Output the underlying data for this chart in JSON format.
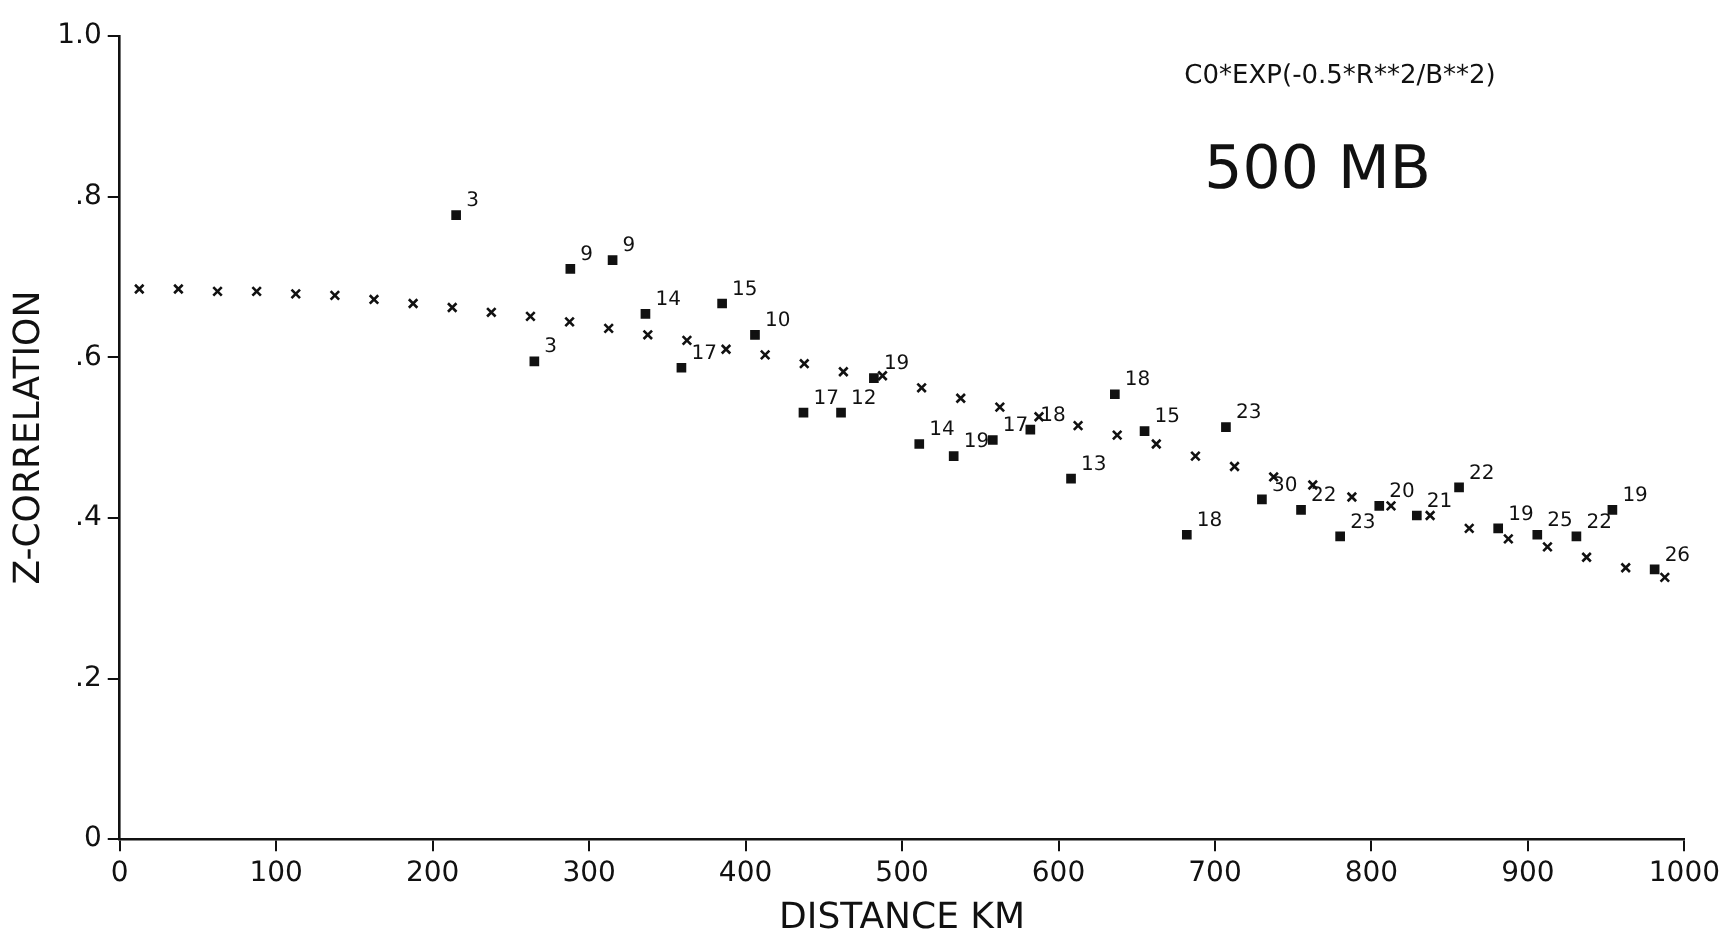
{
  "chart_data": {
    "type": "scatter",
    "xlabel": "DISTANCE KM",
    "ylabel": "Z-CORRELATION",
    "annotations": [
      "C0*EXP(-0.5*R**2/B**2)",
      "500 MB",
      {
        "text": "3",
        "x": 215,
        "y": 0.777
      },
      {
        "text": "3",
        "x": 265,
        "y": 0.595
      },
      {
        "text": "9",
        "x": 288,
        "y": 0.71
      },
      {
        "text": "9",
        "x": 315,
        "y": 0.721
      },
      {
        "text": "14",
        "x": 336,
        "y": 0.654
      },
      {
        "text": "17",
        "x": 359,
        "y": 0.587
      },
      {
        "text": "15",
        "x": 385,
        "y": 0.667
      },
      {
        "text": "10",
        "x": 406,
        "y": 0.628
      },
      {
        "text": "17",
        "x": 437,
        "y": 0.531
      },
      {
        "text": "12",
        "x": 461,
        "y": 0.531
      },
      {
        "text": "19",
        "x": 482,
        "y": 0.574
      },
      {
        "text": "14",
        "x": 511,
        "y": 0.492
      },
      {
        "text": "19",
        "x": 533,
        "y": 0.477
      },
      {
        "text": "17",
        "x": 558,
        "y": 0.497
      },
      {
        "text": "18",
        "x": 582,
        "y": 0.51
      },
      {
        "text": "13",
        "x": 608,
        "y": 0.449
      },
      {
        "text": "18",
        "x": 636,
        "y": 0.554
      },
      {
        "text": "15",
        "x": 655,
        "y": 0.508
      },
      {
        "text": "18",
        "x": 682,
        "y": 0.379
      },
      {
        "text": "23",
        "x": 707,
        "y": 0.513
      },
      {
        "text": "30",
        "x": 730,
        "y": 0.423
      },
      {
        "text": "22",
        "x": 755,
        "y": 0.41
      },
      {
        "text": "23",
        "x": 780,
        "y": 0.377
      },
      {
        "text": "20",
        "x": 805,
        "y": 0.415
      },
      {
        "text": "21",
        "x": 829,
        "y": 0.403
      },
      {
        "text": "22",
        "x": 856,
        "y": 0.438
      },
      {
        "text": "19",
        "x": 881,
        "y": 0.387
      },
      {
        "text": "25",
        "x": 906,
        "y": 0.379
      },
      {
        "text": "22",
        "x": 931,
        "y": 0.377
      },
      {
        "text": "19",
        "x": 954,
        "y": 0.41
      },
      {
        "text": "26",
        "x": 981,
        "y": 0.336
      }
    ],
    "xlim": [
      0,
      1000
    ],
    "xticks": [
      0,
      100,
      200,
      300,
      400,
      500,
      600,
      700,
      800,
      900,
      1000
    ],
    "ylim": [
      0,
      1
    ],
    "yticks": [
      0,
      {
        "value": 0.2,
        "label": ".2"
      },
      {
        "value": 0.4,
        "label": ".4"
      },
      {
        "value": 0.6,
        "label": ".6"
      },
      {
        "value": 0.8,
        "label": ".8"
      },
      {
        "value": 1,
        "label": "1.0"
      }
    ],
    "grid": false,
    "legend": false,
    "series": [
      {
        "color": "#111111",
        "marker": "square",
        "x": [
          215,
          265,
          288,
          315,
          336,
          359,
          385,
          406,
          437,
          461,
          482,
          511,
          533,
          558,
          582,
          608,
          636,
          655,
          682,
          707,
          730,
          755,
          780,
          805,
          829,
          856,
          881,
          906,
          931,
          954,
          981
        ],
        "values": [
          0.777,
          0.595,
          0.71,
          0.721,
          0.654,
          0.587,
          0.667,
          0.628,
          0.531,
          0.531,
          0.574,
          0.492,
          0.477,
          0.497,
          0.51,
          0.449,
          0.554,
          0.508,
          0.379,
          0.513,
          0.423,
          0.41,
          0.377,
          0.415,
          0.403,
          0.438,
          0.387,
          0.379,
          0.377,
          0.41,
          0.336
        ]
      },
      {
        "color": "#111111",
        "marker": "cross",
        "x": [
          12.5,
          37.5,
          62.5,
          87.5,
          112.5,
          137.5,
          162.5,
          187.5,
          212.5,
          237.5,
          262.5,
          287.5,
          312.5,
          337.5,
          362.5,
          387.5,
          412.5,
          437.5,
          462.5,
          487.5,
          512.5,
          537.5,
          562.5,
          587.5,
          612.5,
          637.5,
          662.5,
          687.5,
          712.5,
          737.5,
          762.5,
          787.5,
          812.5,
          837.5,
          862.5,
          887.5,
          912.5,
          937.5,
          962.5,
          987.5
        ],
        "values": [
          0.685,
          0.685,
          0.682,
          0.682,
          0.679,
          0.677,
          0.672,
          0.667,
          0.662,
          0.656,
          0.651,
          0.644,
          0.636,
          0.628,
          0.621,
          0.61,
          0.603,
          0.592,
          0.582,
          0.577,
          0.562,
          0.549,
          0.538,
          0.526,
          0.515,
          0.503,
          0.492,
          0.477,
          0.464,
          0.451,
          0.441,
          0.426,
          0.415,
          0.403,
          0.387,
          0.374,
          0.364,
          0.351,
          0.338,
          0.326
        ]
      }
    ]
  }
}
